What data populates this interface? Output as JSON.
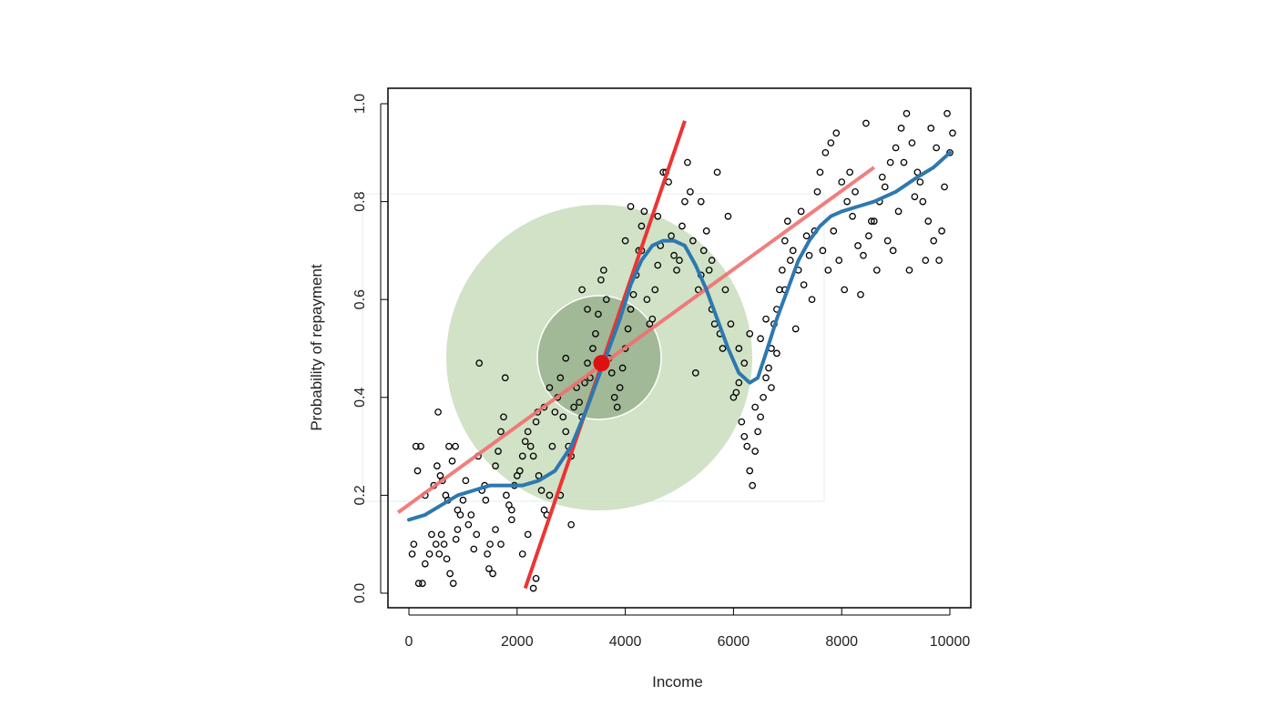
{
  "chart_data": {
    "type": "scatter",
    "title": "",
    "xlabel": "Income",
    "ylabel": "Probability of repayment",
    "xlim": [
      -400,
      10400
    ],
    "ylim": [
      -0.03,
      1.03
    ],
    "x_ticks": [
      0,
      2000,
      4000,
      6000,
      8000,
      10000
    ],
    "x_tick_labels": [
      "0",
      "2000",
      "4000",
      "6000",
      "8000",
      "10000"
    ],
    "y_ticks": [
      0.0,
      0.2,
      0.4,
      0.6,
      0.8,
      1.0
    ],
    "y_tick_labels": [
      "0.0",
      "0.2",
      "0.4",
      "0.6",
      "0.8",
      "1.0"
    ],
    "grid": false,
    "colors": {
      "points": "#000000",
      "smooth": "#2e78b0",
      "fit_line": "#f07070",
      "steep_line": "#ee3333",
      "center_point": "#dd1111",
      "outer_circle": "#c9ddbd",
      "inner_circle": "#9cb591"
    },
    "series": [
      {
        "type": "scatter",
        "points": [
          [
            130,
            0.3
          ],
          [
            220,
            0.3
          ],
          [
            160,
            0.25
          ],
          [
            300,
            0.2
          ],
          [
            60,
            0.08
          ],
          [
            90,
            0.1
          ],
          [
            180,
            0.02
          ],
          [
            250,
            0.02
          ],
          [
            300,
            0.06
          ],
          [
            380,
            0.08
          ],
          [
            420,
            0.12
          ],
          [
            500,
            0.1
          ],
          [
            560,
            0.08
          ],
          [
            600,
            0.12
          ],
          [
            650,
            0.1
          ],
          [
            700,
            0.07
          ],
          [
            760,
            0.04
          ],
          [
            820,
            0.02
          ],
          [
            870,
            0.11
          ],
          [
            900,
            0.13
          ],
          [
            460,
            0.22
          ],
          [
            520,
            0.26
          ],
          [
            540,
            0.37
          ],
          [
            580,
            0.24
          ],
          [
            620,
            0.23
          ],
          [
            680,
            0.2
          ],
          [
            720,
            0.19
          ],
          [
            740,
            0.3
          ],
          [
            800,
            0.27
          ],
          [
            860,
            0.3
          ],
          [
            900,
            0.17
          ],
          [
            950,
            0.16
          ],
          [
            1000,
            0.19
          ],
          [
            1050,
            0.23
          ],
          [
            1100,
            0.14
          ],
          [
            1150,
            0.16
          ],
          [
            1200,
            0.09
          ],
          [
            1250,
            0.12
          ],
          [
            1280,
            0.28
          ],
          [
            1300,
            0.47
          ],
          [
            1350,
            0.21
          ],
          [
            1400,
            0.22
          ],
          [
            1420,
            0.19
          ],
          [
            1450,
            0.08
          ],
          [
            1480,
            0.05
          ],
          [
            1500,
            0.1
          ],
          [
            1550,
            0.04
          ],
          [
            1600,
            0.26
          ],
          [
            1650,
            0.29
          ],
          [
            1700,
            0.33
          ],
          [
            1750,
            0.36
          ],
          [
            1780,
            0.44
          ],
          [
            1800,
            0.2
          ],
          [
            1850,
            0.18
          ],
          [
            1900,
            0.17
          ],
          [
            1950,
            0.22
          ],
          [
            2000,
            0.24
          ],
          [
            2050,
            0.25
          ],
          [
            2100,
            0.28
          ],
          [
            2150,
            0.31
          ],
          [
            2200,
            0.33
          ],
          [
            2250,
            0.3
          ],
          [
            2300,
            0.28
          ],
          [
            2350,
            0.35
          ],
          [
            2380,
            0.37
          ],
          [
            2400,
            0.24
          ],
          [
            2450,
            0.21
          ],
          [
            2500,
            0.17
          ],
          [
            2550,
            0.16
          ],
          [
            2600,
            0.2
          ],
          [
            2650,
            0.3
          ],
          [
            2700,
            0.37
          ],
          [
            2750,
            0.4
          ],
          [
            2800,
            0.44
          ],
          [
            2850,
            0.36
          ],
          [
            2900,
            0.33
          ],
          [
            2950,
            0.3
          ],
          [
            3000,
            0.28
          ],
          [
            3050,
            0.38
          ],
          [
            3100,
            0.42
          ],
          [
            3150,
            0.39
          ],
          [
            3200,
            0.36
          ],
          [
            3250,
            0.43
          ],
          [
            3300,
            0.47
          ],
          [
            3350,
            0.44
          ],
          [
            3400,
            0.5
          ],
          [
            3450,
            0.53
          ],
          [
            3500,
            0.57
          ],
          [
            3550,
            0.64
          ],
          [
            3600,
            0.66
          ],
          [
            3650,
            0.6
          ],
          [
            3700,
            0.48
          ],
          [
            3750,
            0.45
          ],
          [
            3800,
            0.4
          ],
          [
            3850,
            0.38
          ],
          [
            3900,
            0.42
          ],
          [
            3950,
            0.46
          ],
          [
            4000,
            0.5
          ],
          [
            4050,
            0.54
          ],
          [
            4100,
            0.58
          ],
          [
            4150,
            0.61
          ],
          [
            4200,
            0.65
          ],
          [
            4250,
            0.7
          ],
          [
            4300,
            0.75
          ],
          [
            4350,
            0.78
          ],
          [
            4400,
            0.6
          ],
          [
            4450,
            0.55
          ],
          [
            4500,
            0.56
          ],
          [
            4550,
            0.62
          ],
          [
            4600,
            0.67
          ],
          [
            4650,
            0.71
          ],
          [
            4700,
            0.86
          ],
          [
            4750,
            0.86
          ],
          [
            4800,
            0.84
          ],
          [
            4850,
            0.73
          ],
          [
            4900,
            0.69
          ],
          [
            4950,
            0.66
          ],
          [
            5000,
            0.68
          ],
          [
            5050,
            0.75
          ],
          [
            5100,
            0.8
          ],
          [
            5150,
            0.88
          ],
          [
            5200,
            0.82
          ],
          [
            5250,
            0.72
          ],
          [
            5300,
            0.45
          ],
          [
            5350,
            0.62
          ],
          [
            5400,
            0.65
          ],
          [
            5450,
            0.7
          ],
          [
            5500,
            0.74
          ],
          [
            5550,
            0.66
          ],
          [
            5600,
            0.58
          ],
          [
            5650,
            0.55
          ],
          [
            5700,
            0.86
          ],
          [
            5750,
            0.53
          ],
          [
            5800,
            0.5
          ],
          [
            5850,
            0.62
          ],
          [
            5900,
            0.77
          ],
          [
            5950,
            0.55
          ],
          [
            6000,
            0.4
          ],
          [
            6050,
            0.41
          ],
          [
            6100,
            0.43
          ],
          [
            6150,
            0.35
          ],
          [
            6200,
            0.32
          ],
          [
            6250,
            0.3
          ],
          [
            6300,
            0.25
          ],
          [
            6350,
            0.22
          ],
          [
            6400,
            0.29
          ],
          [
            6450,
            0.33
          ],
          [
            6500,
            0.36
          ],
          [
            6550,
            0.4
          ],
          [
            6600,
            0.44
          ],
          [
            6650,
            0.46
          ],
          [
            6700,
            0.5
          ],
          [
            6750,
            0.55
          ],
          [
            6800,
            0.58
          ],
          [
            6850,
            0.62
          ],
          [
            6900,
            0.66
          ],
          [
            6950,
            0.72
          ],
          [
            7000,
            0.76
          ],
          [
            7100,
            0.7
          ],
          [
            7200,
            0.66
          ],
          [
            7300,
            0.63
          ],
          [
            7400,
            0.69
          ],
          [
            7500,
            0.74
          ],
          [
            7600,
            0.86
          ],
          [
            7700,
            0.9
          ],
          [
            7800,
            0.92
          ],
          [
            7900,
            0.94
          ],
          [
            8000,
            0.84
          ],
          [
            8100,
            0.8
          ],
          [
            8200,
            0.77
          ],
          [
            8300,
            0.71
          ],
          [
            8400,
            0.69
          ],
          [
            8500,
            0.73
          ],
          [
            8600,
            0.76
          ],
          [
            8700,
            0.8
          ],
          [
            8800,
            0.83
          ],
          [
            8900,
            0.88
          ],
          [
            9000,
            0.91
          ],
          [
            9100,
            0.95
          ],
          [
            9200,
            0.98
          ],
          [
            9300,
            0.92
          ],
          [
            9400,
            0.86
          ],
          [
            9500,
            0.8
          ],
          [
            9600,
            0.76
          ],
          [
            9700,
            0.72
          ],
          [
            9800,
            0.68
          ],
          [
            9900,
            0.83
          ],
          [
            10000,
            0.9
          ],
          [
            7450,
            0.6
          ],
          [
            7750,
            0.66
          ],
          [
            8050,
            0.62
          ],
          [
            8350,
            0.61
          ],
          [
            8650,
            0.66
          ],
          [
            8950,
            0.7
          ],
          [
            9250,
            0.66
          ],
          [
            9550,
            0.68
          ],
          [
            9850,
            0.74
          ],
          [
            10050,
            0.94
          ],
          [
            7250,
            0.78
          ],
          [
            7550,
            0.82
          ],
          [
            7850,
            0.74
          ],
          [
            8150,
            0.86
          ],
          [
            8450,
            0.96
          ],
          [
            8750,
            0.85
          ],
          [
            9050,
            0.78
          ],
          [
            9350,
            0.81
          ],
          [
            9650,
            0.95
          ],
          [
            9950,
            0.98
          ],
          [
            7150,
            0.54
          ],
          [
            6950,
            0.62
          ],
          [
            7050,
            0.68
          ],
          [
            7350,
            0.73
          ],
          [
            7650,
            0.7
          ],
          [
            7950,
            0.68
          ],
          [
            8250,
            0.82
          ],
          [
            8550,
            0.76
          ],
          [
            8850,
            0.72
          ],
          [
            9150,
            0.88
          ],
          [
            9450,
            0.84
          ],
          [
            9750,
            0.91
          ],
          [
            2200,
            0.12
          ],
          [
            2300,
            0.01
          ],
          [
            2350,
            0.03
          ],
          [
            2100,
            0.08
          ],
          [
            1900,
            0.15
          ],
          [
            1700,
            0.1
          ],
          [
            1600,
            0.13
          ],
          [
            3200,
            0.62
          ],
          [
            3300,
            0.58
          ],
          [
            2900,
            0.48
          ],
          [
            2600,
            0.42
          ],
          [
            2500,
            0.38
          ],
          [
            2800,
            0.2
          ],
          [
            3000,
            0.14
          ],
          [
            4100,
            0.79
          ],
          [
            4300,
            0.7
          ],
          [
            4600,
            0.77
          ],
          [
            4000,
            0.72
          ],
          [
            5400,
            0.8
          ],
          [
            5600,
            0.68
          ],
          [
            6500,
            0.52
          ],
          [
            6600,
            0.56
          ],
          [
            6800,
            0.49
          ],
          [
            6700,
            0.42
          ],
          [
            6400,
            0.38
          ],
          [
            6200,
            0.47
          ],
          [
            6100,
            0.5
          ],
          [
            6300,
            0.53
          ]
        ]
      },
      {
        "type": "smooth",
        "points": [
          [
            0,
            0.15
          ],
          [
            300,
            0.16
          ],
          [
            600,
            0.18
          ],
          [
            900,
            0.2
          ],
          [
            1200,
            0.21
          ],
          [
            1500,
            0.22
          ],
          [
            1800,
            0.22
          ],
          [
            2100,
            0.22
          ],
          [
            2400,
            0.23
          ],
          [
            2700,
            0.25
          ],
          [
            3000,
            0.3
          ],
          [
            3300,
            0.38
          ],
          [
            3600,
            0.47
          ],
          [
            3900,
            0.56
          ],
          [
            4100,
            0.63
          ],
          [
            4300,
            0.68
          ],
          [
            4500,
            0.71
          ],
          [
            4700,
            0.72
          ],
          [
            4900,
            0.72
          ],
          [
            5100,
            0.71
          ],
          [
            5300,
            0.67
          ],
          [
            5500,
            0.62
          ],
          [
            5700,
            0.56
          ],
          [
            5900,
            0.5
          ],
          [
            6100,
            0.45
          ],
          [
            6300,
            0.43
          ],
          [
            6450,
            0.44
          ],
          [
            6600,
            0.49
          ],
          [
            6800,
            0.56
          ],
          [
            7000,
            0.62
          ],
          [
            7200,
            0.68
          ],
          [
            7400,
            0.72
          ],
          [
            7600,
            0.75
          ],
          [
            7800,
            0.77
          ],
          [
            8000,
            0.78
          ],
          [
            8300,
            0.79
          ],
          [
            8600,
            0.8
          ],
          [
            9000,
            0.82
          ],
          [
            9400,
            0.85
          ],
          [
            9700,
            0.87
          ],
          [
            10000,
            0.9
          ]
        ]
      },
      {
        "type": "line",
        "name": "",
        "points": [
          [
            -200,
            0.165
          ],
          [
            8600,
            0.87
          ]
        ]
      },
      {
        "type": "line",
        "name": "",
        "points": [
          [
            2150,
            0.01
          ],
          [
            5100,
            0.965
          ]
        ]
      }
    ],
    "center_point": [
      3560,
      0.47
    ]
  }
}
